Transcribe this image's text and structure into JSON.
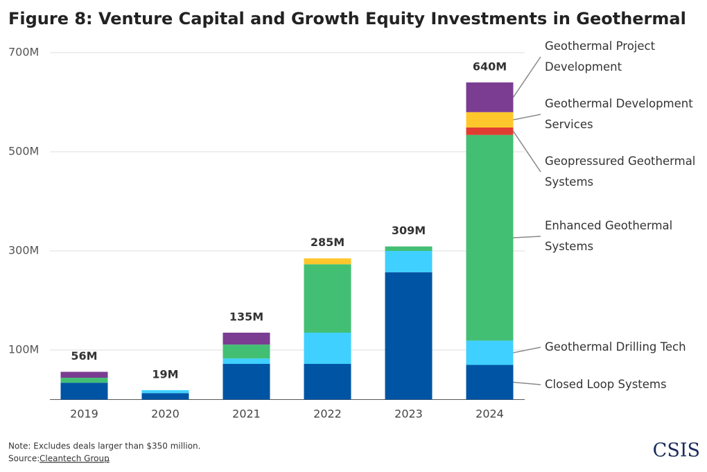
{
  "chart_data": {
    "type": "stacked-bar",
    "title": "Figure 8: Venture Capital and Growth Equity Investments in Geothermal",
    "categories": [
      "2019",
      "2020",
      "2021",
      "2022",
      "2023",
      "2024"
    ],
    "series": [
      {
        "name": "Closed Loop Systems",
        "color": "#0054a4",
        "values": [
          34,
          13,
          72,
          72,
          257,
          70
        ]
      },
      {
        "name": "Geothermal Drilling Tech",
        "color": "#3fd0ff",
        "values": [
          0,
          6,
          11,
          63,
          43,
          49
        ]
      },
      {
        "name": "Enhanced Geothermal Systems",
        "color": "#43bf74",
        "values": [
          10,
          0,
          28,
          138,
          9,
          415
        ]
      },
      {
        "name": "Geopressured Geothermal Systems",
        "color": "#e03c31",
        "values": [
          0,
          0,
          0,
          0,
          0,
          15
        ]
      },
      {
        "name": "Geothermal Development Services",
        "color": "#ffc72c",
        "values": [
          0,
          0,
          0,
          12,
          0,
          31
        ]
      },
      {
        "name": "Geothermal Project Development",
        "color": "#7a3d91",
        "values": [
          12,
          0,
          24,
          0,
          0,
          60
        ]
      }
    ],
    "totals": {
      "values": [
        56,
        19,
        135,
        285,
        309,
        640
      ],
      "value_labels": [
        "56M",
        "19M",
        "135M",
        "285M",
        "309M",
        "640M"
      ]
    },
    "ylim": [
      0,
      700
    ],
    "yticks": [
      {
        "value": 100,
        "label": "100M"
      },
      {
        "value": 300,
        "label": "300M"
      },
      {
        "value": 500,
        "label": "500M"
      },
      {
        "value": 700,
        "label": "700M"
      }
    ],
    "grid": true,
    "legend": "right",
    "note": "Note: Excludes deals larger than $350 million.",
    "source_label": "Source:",
    "source": "Cleantech Group",
    "source_end": ".",
    "logo": "CSIS"
  }
}
